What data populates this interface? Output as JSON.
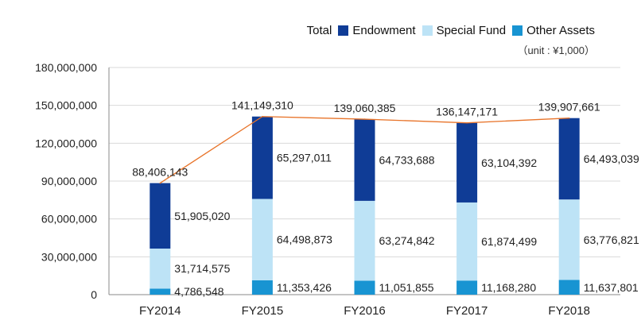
{
  "legend": {
    "total_label": "Total",
    "items": [
      {
        "label": "Endowment",
        "color": "#0f3c96"
      },
      {
        "label": "Special Fund",
        "color": "#bde3f6"
      },
      {
        "label": "Other Assets",
        "color": "#1894d2"
      }
    ],
    "unit": "（unit : ¥1,000）"
  },
  "chart_data": {
    "type": "bar",
    "stacked": true,
    "categories": [
      "FY2014",
      "FY2015",
      "FY2016",
      "FY2017",
      "FY2018"
    ],
    "series": [
      {
        "name": "Other Assets",
        "color": "#1894d2",
        "values": [
          4786548,
          11353426,
          11051855,
          11168280,
          11637801
        ],
        "labels": [
          "4,786,548",
          "11,353,426",
          "11,051,855",
          "11,168,280",
          "11,637,801"
        ]
      },
      {
        "name": "Special Fund",
        "color": "#bde3f6",
        "values": [
          31714575,
          64498873,
          63274842,
          61874499,
          63776821
        ],
        "labels": [
          "31,714,575",
          "64,498,873",
          "63,274,842",
          "61,874,499",
          "63,776,821"
        ]
      },
      {
        "name": "Endowment",
        "color": "#0f3c96",
        "values": [
          51905020,
          65297011,
          64733688,
          63104392,
          64493039
        ],
        "labels": [
          "51,905,020",
          "65,297,011",
          "64,733,688",
          "63,104,392",
          "64,493,039"
        ]
      }
    ],
    "totals": {
      "name": "Total",
      "color": "#e8742a",
      "values": [
        88406143,
        141149310,
        139060385,
        136147171,
        139907661
      ],
      "labels": [
        "88,406,143",
        "141,149,310",
        "139,060,385",
        "136,147,171",
        "139,907,661"
      ]
    },
    "ylim": [
      0,
      180000000
    ],
    "yticks": [
      0,
      30000000,
      60000000,
      90000000,
      120000000,
      150000000,
      180000000
    ],
    "ytick_labels": [
      "0",
      "30,000,000",
      "60,000,000",
      "90,000,000",
      "120,000,000",
      "150,000,000",
      "180,000,000"
    ],
    "grid": true,
    "legend_position": "top-right",
    "xlabel": "",
    "ylabel": ""
  }
}
